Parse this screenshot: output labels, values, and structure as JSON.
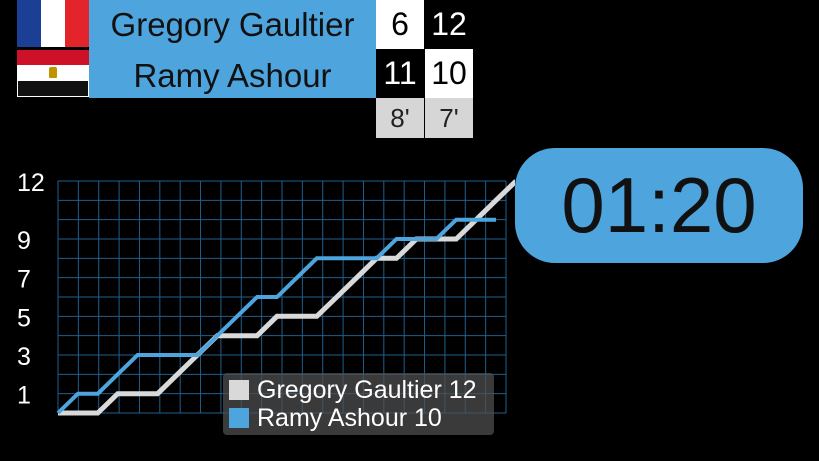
{
  "players": [
    {
      "name": "Gregory Gaultier",
      "flag": "france-flag",
      "games": [
        "6",
        "12"
      ],
      "color": "#d9d9d9"
    },
    {
      "name": "Ramy Ashour",
      "flag": "egypt-flag",
      "games": [
        "11",
        "10"
      ],
      "color": "#4ea4dd"
    }
  ],
  "game_durations": [
    "8'",
    "7'"
  ],
  "timer": "01:20",
  "legend": [
    "Gregory Gaultier 12",
    "Ramy Ashour 10"
  ],
  "colors": {
    "panel": "#4ea4dd",
    "grid": "#1f5f8f",
    "p1": "#d9d9d9",
    "p2": "#4ea4dd"
  },
  "chart_data": {
    "type": "line",
    "y_ticks": [
      "12",
      "9",
      "7",
      "5",
      "3",
      "1"
    ],
    "ylim": [
      0,
      12
    ],
    "series": [
      {
        "name": "Gregory Gaultier 12",
        "values": [
          0,
          0,
          0,
          1,
          1,
          1,
          2,
          3,
          4,
          4,
          4,
          5,
          5,
          5,
          6,
          7,
          8,
          8,
          9,
          9,
          9,
          10,
          11,
          12
        ]
      },
      {
        "name": "Ramy Ashour 10",
        "values": [
          0,
          1,
          1,
          2,
          3,
          3,
          3,
          3,
          4,
          5,
          6,
          6,
          7,
          8,
          8,
          8,
          8,
          9,
          9,
          9,
          10,
          10,
          10
        ]
      }
    ]
  }
}
